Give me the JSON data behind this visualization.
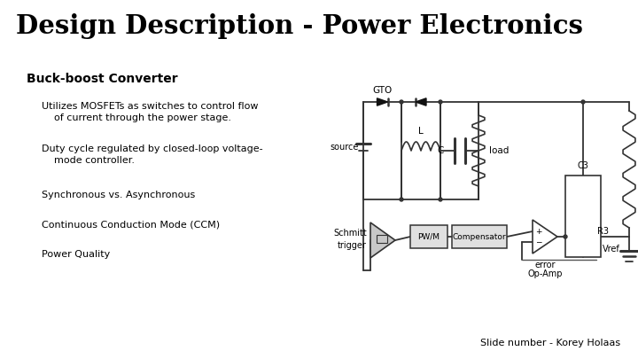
{
  "title": "Design Description - Power Electronics",
  "subtitle": "Buck-boost Converter",
  "bullets": [
    "Utilizes MOSFETs as switches to control flow\n    of current through the power stage.",
    "Duty cycle regulated by closed-loop voltage-\n    mode controller.",
    "Synchronous vs. Asynchronous",
    "Continuous Conduction Mode (CCM)",
    "Power Quality"
  ],
  "footer": "Slide number - Korey Holaas",
  "bg_color": "#ffffff",
  "title_color": "#000000",
  "text_color": "#000000",
  "lc": "#333333"
}
